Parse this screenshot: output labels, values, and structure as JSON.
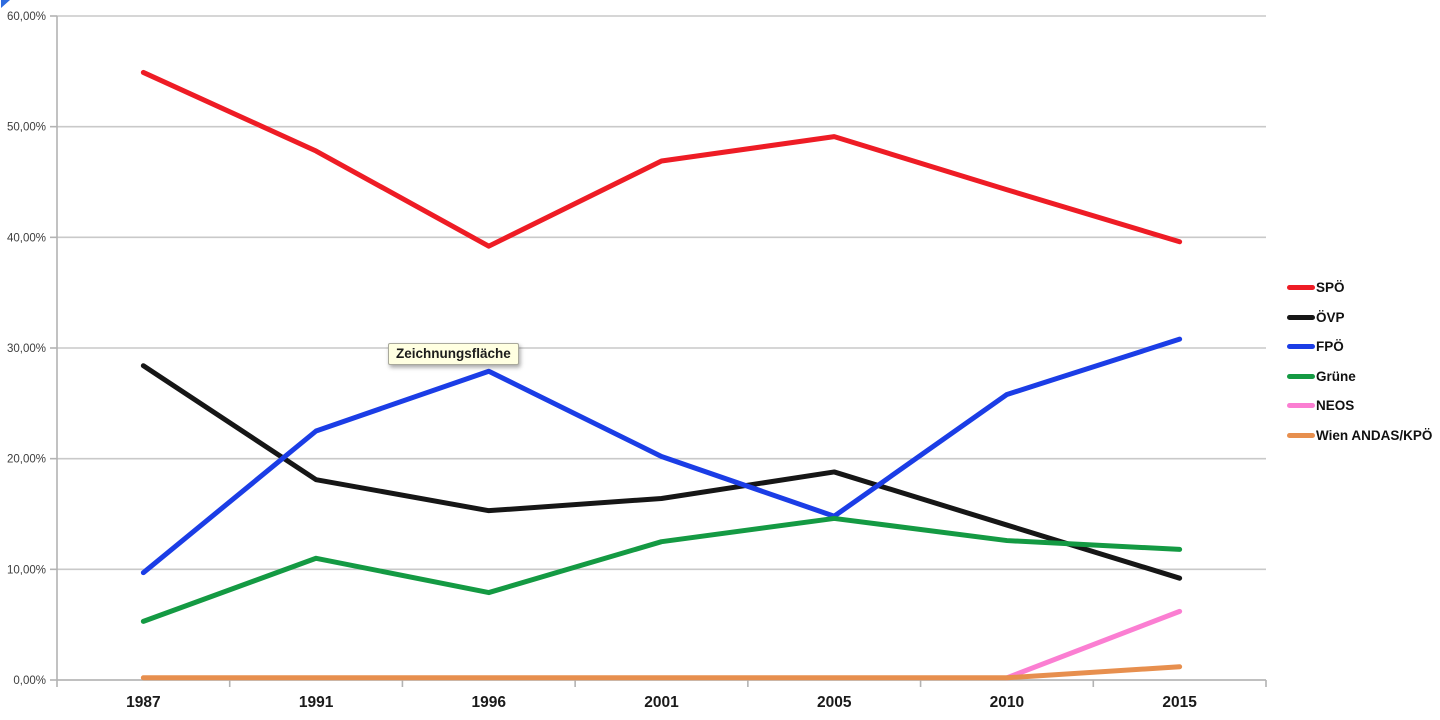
{
  "window": {
    "background": "#ffffff"
  },
  "corner_artifact": {
    "color": "#2e6bde"
  },
  "tooltip": {
    "text": "Zeichnungsfläche",
    "background": "#ffffe1",
    "border_color": "#a9a99c"
  },
  "y_axis": {
    "labels": [
      "60,00%",
      "50,00%",
      "40,00%",
      "30,00%",
      "20,00%",
      "10,00%",
      "0,00%"
    ],
    "text_color": "#3d3d3d"
  },
  "x_axis": {
    "labels": [
      "1987",
      "1991",
      "1996",
      "2001",
      "2005",
      "2010",
      "2015"
    ],
    "text_color": "#1a1a1a"
  },
  "grid": {
    "line_color": "#c9c9c9",
    "axis_color": "#b3b3b3"
  },
  "legend": {
    "items": [
      {
        "label": "SPÖ",
        "color": "#ee1c25"
      },
      {
        "label": "ÖVP",
        "color": "#161616"
      },
      {
        "label": "FPÖ",
        "color": "#1b3de6"
      },
      {
        "label": "Grüne",
        "color": "#149a43"
      },
      {
        "label": "NEOS",
        "color": "#fb7ed2"
      },
      {
        "label": "Wien ANDAS/KPÖ",
        "color": "#e78f4e"
      }
    ]
  },
  "chart_data": {
    "type": "line",
    "title": "",
    "xlabel": "",
    "ylabel": "",
    "categories": [
      1987,
      1991,
      1996,
      2001,
      2005,
      2010,
      2015
    ],
    "series": [
      {
        "name": "SPÖ",
        "color": "#ee1c25",
        "values": [
          54.9,
          47.8,
          39.2,
          46.9,
          49.1,
          44.3,
          39.6
        ]
      },
      {
        "name": "ÖVP",
        "color": "#161616",
        "values": [
          28.4,
          18.1,
          15.3,
          16.4,
          18.8,
          14.0,
          9.2
        ]
      },
      {
        "name": "FPÖ",
        "color": "#1b3de6",
        "values": [
          9.7,
          22.5,
          27.9,
          20.2,
          14.8,
          25.8,
          30.8
        ]
      },
      {
        "name": "Grüne",
        "color": "#149a43",
        "values": [
          5.3,
          11.0,
          7.9,
          12.5,
          14.6,
          12.6,
          11.8
        ]
      },
      {
        "name": "NEOS",
        "color": "#fb7ed2",
        "values": [
          null,
          null,
          null,
          null,
          null,
          0.2,
          6.2
        ]
      },
      {
        "name": "Wien ANDAS/KPÖ",
        "color": "#e78f4e",
        "values": [
          0.2,
          0.2,
          0.2,
          0.2,
          0.2,
          0.2,
          1.2
        ]
      }
    ],
    "ylim": [
      0,
      60
    ],
    "y_tick_step": 10,
    "y_tick_format": "percent-comma-2dp",
    "grid": "horizontal",
    "legend_position": "right",
    "plot_area_tooltip": "Zeichnungsfläche"
  }
}
